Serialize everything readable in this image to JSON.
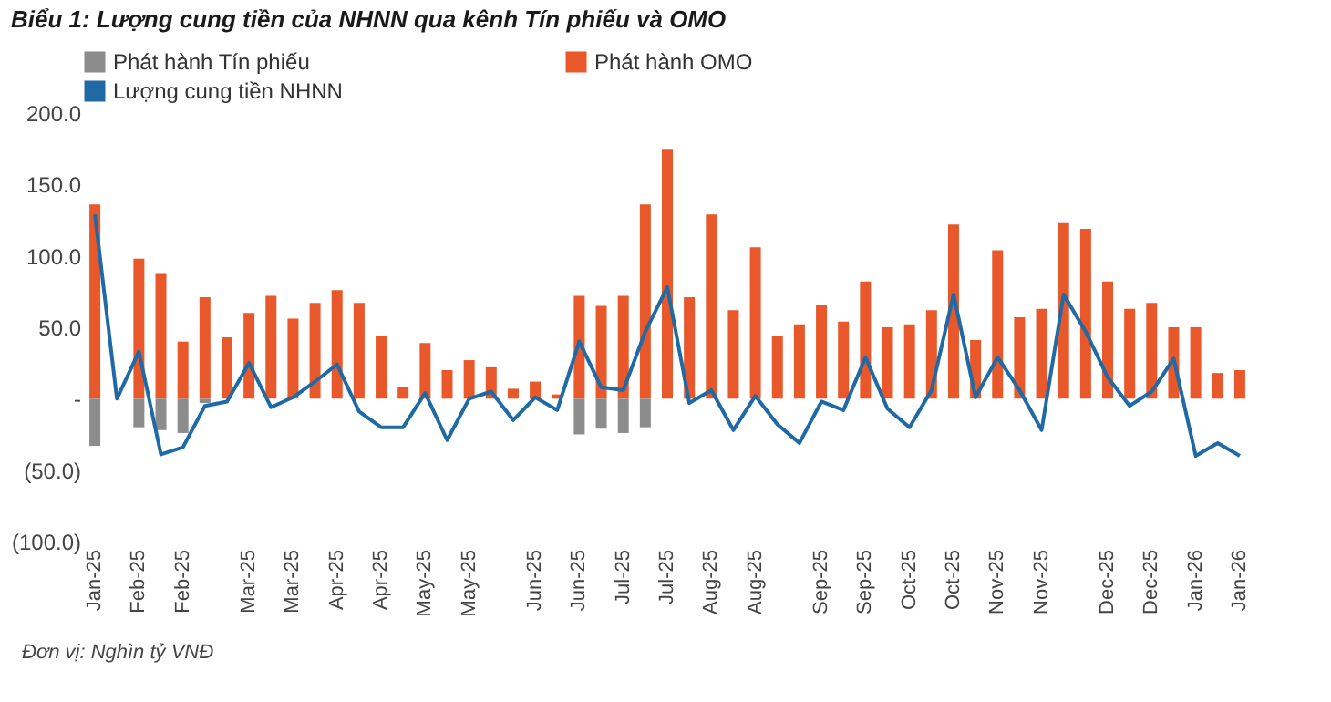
{
  "chart_data": {
    "type": "bar",
    "title": "Biểu 1: Lượng cung tiền của NHNN qua kênh Tín phiếu và OMO",
    "categories": [
      "Jan-25",
      null,
      "Feb-25",
      null,
      "Feb-25",
      null,
      null,
      "Mar-25",
      null,
      "Mar-25",
      null,
      "Apr-25",
      null,
      "Apr-25",
      null,
      "May-25",
      null,
      "May-25",
      null,
      null,
      "Jun-25",
      null,
      "Jun-25",
      null,
      "Jul-25",
      null,
      "Jul-25",
      null,
      "Aug-25",
      null,
      "Aug-25",
      null,
      null,
      "Sep-25",
      null,
      "Sep-25",
      null,
      "Oct-25",
      null,
      "Oct-25",
      null,
      "Nov-25",
      null,
      "Nov-25",
      null,
      null,
      "Dec-25",
      null,
      "Dec-25",
      null,
      "Jan-26",
      null,
      "Jan-26"
    ],
    "stacked": true,
    "series": [
      {
        "name": "Phát hành Tín phiếu",
        "color": "#8c8c8c",
        "values": [
          -33,
          null,
          -20,
          -22,
          -24,
          -3,
          null,
          null,
          null,
          null,
          null,
          null,
          null,
          null,
          null,
          null,
          null,
          null,
          null,
          null,
          null,
          null,
          -25,
          -21,
          -24,
          -20,
          null,
          null,
          null,
          null,
          null,
          null,
          null,
          null,
          null,
          null,
          null,
          null,
          null,
          null,
          null,
          null,
          null,
          null,
          null,
          null,
          null,
          null,
          null,
          null,
          null,
          null,
          null
        ]
      },
      {
        "name": "Phát hành OMO",
        "color": "#e8582a",
        "values": [
          136,
          null,
          98,
          88,
          40,
          71,
          43,
          60,
          72,
          56,
          67,
          76,
          67,
          44,
          8,
          39,
          20,
          27,
          22,
          7,
          12,
          3,
          72,
          65,
          72,
          136,
          175,
          71,
          129,
          62,
          106,
          44,
          52,
          66,
          54,
          82,
          50,
          52,
          62,
          122,
          41,
          104,
          57,
          63,
          123,
          119,
          82,
          63,
          67,
          50,
          50,
          18,
          20
        ]
      },
      {
        "name": "Lượng cung tiền NHNN",
        "type": "line",
        "color": "#1f6aa5",
        "values": [
          129,
          0,
          33,
          -39,
          -34,
          -5,
          -2,
          25,
          -6,
          1,
          12,
          24,
          -9,
          -20,
          -20,
          4,
          -29,
          0,
          5,
          -15,
          1,
          -8,
          40,
          8,
          6,
          47,
          78,
          -3,
          6,
          -22,
          2,
          -18,
          -31,
          -2,
          -8,
          29,
          -7,
          -20,
          6,
          73,
          1,
          29,
          6,
          -22,
          73,
          47,
          15,
          -5,
          5,
          28,
          -40,
          -31,
          -40
        ]
      }
    ],
    "ylim": [
      -100,
      200
    ],
    "yticks": [
      {
        "value": -100,
        "label": "(100.0)"
      },
      {
        "value": -50,
        "label": "(50.0)"
      },
      {
        "value": 0,
        "label": "-"
      },
      {
        "value": 50,
        "label": "50.0"
      },
      {
        "value": 100,
        "label": "100.0"
      },
      {
        "value": 150,
        "label": "150.0"
      },
      {
        "value": 200,
        "label": "200.0"
      }
    ],
    "legend": "top",
    "annotations": [
      "Đơn vị: Nghìn tỷ VNĐ"
    ]
  }
}
